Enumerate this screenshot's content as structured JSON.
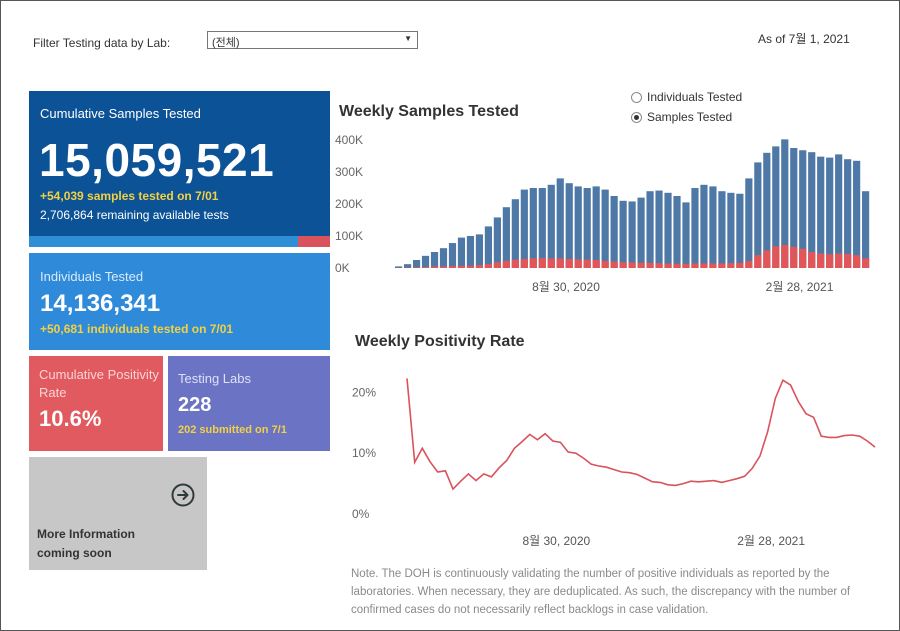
{
  "filter": {
    "label": "Filter Testing data by Lab:",
    "value": "(전체)"
  },
  "as_of": "As of 7월 1, 2021",
  "cumulative_samples": {
    "label": "Cumulative Samples Tested",
    "value": "15,059,521",
    "sub1": "+54,039 samples tested on 7/01",
    "sub2": "2,706,864 remaining available tests",
    "progress_fraction": 0.893,
    "colors": {
      "bg": "#0c5296",
      "fill": "#2f8fd6",
      "remaining": "#d9535c"
    }
  },
  "individuals": {
    "label": "Individuals Tested",
    "value": "14,136,341",
    "sub1": "+50,681  individuals  tested on 7/01"
  },
  "positivity": {
    "label": "Cumulative Positivity Rate",
    "value": "10.6%"
  },
  "labs": {
    "label": "Testing Labs",
    "value": "228",
    "sub1": "202 submitted on 7/1"
  },
  "more_info": {
    "line1": "More Information",
    "line2": "coming soon",
    "icon": "arrow-circle-right-icon"
  },
  "toggle": {
    "options": [
      "Individuals Tested",
      "Samples Tested"
    ],
    "selected": "Samples Tested"
  },
  "note": "Note. The DOH is continuously validating the number of positive individuals as reported by the laboratories. When necessary, they are deduplicated. As such, the discrepancy with the number of confirmed cases do not necessarily reflect backlogs in case validation.",
  "chart_data": [
    {
      "type": "bar",
      "title": "Weekly Samples Tested",
      "x_ticks": [
        "8월 30, 2020",
        "2월 28, 2021"
      ],
      "y_ticks": [
        "0K",
        "100K",
        "200K",
        "300K",
        "400K"
      ],
      "ylim": [
        0,
        400000
      ],
      "colors": {
        "total": "#4e79a7",
        "positive": "#e15759"
      },
      "series": [
        {
          "values": [
            5000,
            12000,
            25000,
            38000,
            50000,
            62000,
            78000,
            95000,
            100000,
            105000,
            130000,
            158000,
            190000,
            215000,
            245000,
            250000,
            250000,
            260000,
            280000,
            265000,
            255000,
            250000,
            255000,
            245000,
            225000,
            210000,
            208000,
            220000,
            240000,
            242000,
            235000,
            225000,
            205000,
            250000,
            260000,
            255000,
            240000,
            235000,
            232000,
            280000,
            330000,
            360000,
            380000,
            402000,
            375000,
            368000,
            362000,
            348000,
            345000,
            355000,
            340000,
            335000,
            240000
          ]
        },
        {
          "values": [
            500,
            1000,
            2000,
            3000,
            5000,
            5000,
            6000,
            7000,
            7000,
            9000,
            12000,
            18000,
            22000,
            26000,
            28000,
            30000,
            31000,
            30000,
            30000,
            28000,
            27000,
            26000,
            25000,
            22000,
            20000,
            18000,
            17000,
            16000,
            16000,
            15000,
            14000,
            13000,
            13000,
            14000,
            14000,
            14000,
            14000,
            15000,
            16000,
            22000,
            40000,
            55000,
            68000,
            72000,
            66000,
            60000,
            50000,
            45000,
            43000,
            45000,
            44000,
            40000,
            30000
          ]
        }
      ]
    },
    {
      "type": "line",
      "title": "Weekly Positivity Rate",
      "x_ticks": [
        "8월 30, 2020",
        "2월 28, 2021"
      ],
      "y_ticks": [
        "0%",
        "10%",
        "20%"
      ],
      "ylim": [
        0,
        25
      ],
      "color": "#d9535c",
      "values": [
        22.3,
        8.5,
        10.8,
        8.6,
        6.9,
        7.1,
        4.1,
        5.4,
        6.6,
        5.5,
        6.6,
        6.1,
        7.6,
        8.8,
        10.8,
        11.9,
        13.1,
        12.2,
        13.2,
        12.0,
        11.8,
        10.2,
        10.0,
        9.2,
        8.2,
        7.9,
        7.7,
        7.3,
        6.9,
        6.8,
        6.5,
        5.9,
        5.3,
        5.2,
        4.8,
        4.7,
        5.0,
        5.4,
        5.3,
        5.4,
        5.5,
        5.2,
        5.5,
        5.8,
        6.2,
        7.5,
        9.5,
        13.5,
        19.0,
        22.0,
        21.2,
        18.5,
        16.5,
        15.9,
        12.8,
        12.6,
        12.6,
        12.9,
        13.0,
        12.8,
        12.0,
        11.0
      ]
    }
  ]
}
